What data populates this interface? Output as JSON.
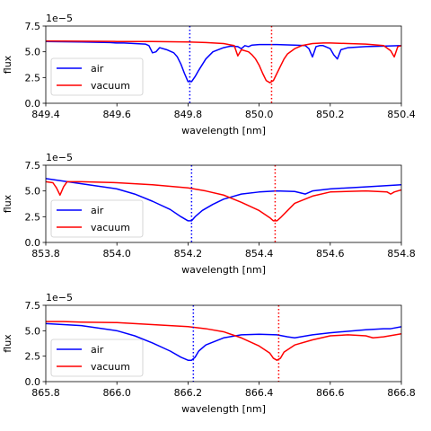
{
  "chart_data": [
    {
      "type": "line",
      "xlabel": "wavelength [nm]",
      "ylabel": "flux",
      "offset_text": "1e−5",
      "xlim": [
        849.4,
        850.4
      ],
      "ylim": [
        0.0,
        7.5
      ],
      "y_scale_factor": "1e-5",
      "xticks": [
        "849.4",
        "849.6",
        "849.8",
        "850.0",
        "850.2",
        "850.4"
      ],
      "yticks": [
        "0.0",
        "2.5",
        "5.0",
        "7.5"
      ],
      "legend": "upper-left",
      "series": [
        {
          "name": "air",
          "color": "#0000ff",
          "x": [
            849.4,
            849.5,
            849.58,
            849.6,
            849.62,
            849.65,
            849.68,
            849.69,
            849.7,
            849.71,
            849.72,
            849.74,
            849.76,
            849.77,
            849.78,
            849.79,
            849.8,
            849.81,
            849.82,
            849.83,
            849.85,
            849.87,
            849.9,
            849.92,
            849.94,
            849.95,
            849.96,
            849.97,
            849.98,
            850.0,
            850.05,
            850.1,
            850.13,
            850.14,
            850.15,
            850.16,
            850.17,
            850.18,
            850.2,
            850.21,
            850.22,
            850.23,
            850.25,
            850.3,
            850.35,
            850.4
          ],
          "y": [
            6.0,
            5.95,
            5.9,
            5.85,
            5.85,
            5.8,
            5.75,
            5.6,
            4.9,
            5.0,
            5.4,
            5.2,
            4.9,
            4.5,
            3.8,
            2.9,
            2.1,
            2.1,
            2.6,
            3.2,
            4.3,
            5.0,
            5.4,
            5.55,
            5.5,
            5.3,
            5.6,
            5.5,
            5.65,
            5.7,
            5.7,
            5.65,
            5.6,
            5.3,
            4.5,
            5.5,
            5.6,
            5.6,
            5.3,
            4.7,
            4.3,
            5.2,
            5.4,
            5.5,
            5.55,
            5.6
          ]
        },
        {
          "name": "vacuum",
          "color": "#ff0000",
          "x": [
            849.4,
            849.6,
            849.7,
            849.8,
            849.85,
            849.9,
            849.93,
            849.94,
            849.95,
            849.97,
            849.98,
            849.99,
            850.0,
            850.01,
            850.02,
            850.03,
            850.04,
            850.05,
            850.06,
            850.07,
            850.08,
            850.1,
            850.12,
            850.15,
            850.18,
            850.2,
            850.25,
            850.3,
            850.35,
            850.37,
            850.38,
            850.39,
            850.4
          ],
          "y": [
            6.05,
            6.0,
            6.0,
            5.95,
            5.9,
            5.8,
            5.6,
            4.6,
            5.2,
            5.0,
            4.7,
            4.3,
            3.7,
            2.9,
            2.2,
            2.0,
            2.2,
            2.9,
            3.6,
            4.3,
            4.8,
            5.3,
            5.6,
            5.8,
            5.85,
            5.85,
            5.8,
            5.75,
            5.6,
            5.1,
            4.5,
            5.5,
            5.6
          ]
        }
      ],
      "vlines": [
        {
          "x": 849.805,
          "color": "#0000ff",
          "style": "dotted"
        },
        {
          "x": 850.035,
          "color": "#ff0000",
          "style": "dotted"
        }
      ]
    },
    {
      "type": "line",
      "xlabel": "wavelength [nm]",
      "ylabel": "flux",
      "offset_text": "1e−5",
      "xlim": [
        853.8,
        854.8
      ],
      "ylim": [
        0.0,
        7.5
      ],
      "y_scale_factor": "1e-5",
      "xticks": [
        "853.8",
        "854.0",
        "854.2",
        "854.4",
        "854.6",
        "854.8"
      ],
      "yticks": [
        "0.0",
        "2.5",
        "5.0",
        "7.5"
      ],
      "legend": "lower-left",
      "series": [
        {
          "name": "air",
          "color": "#0000ff",
          "x": [
            853.8,
            853.9,
            854.0,
            854.05,
            854.1,
            854.15,
            854.18,
            854.2,
            854.21,
            854.22,
            854.24,
            854.27,
            854.3,
            854.35,
            854.4,
            854.45,
            854.5,
            854.53,
            854.55,
            854.6,
            854.7,
            854.8
          ],
          "y": [
            6.2,
            5.7,
            5.2,
            4.7,
            4.0,
            3.2,
            2.5,
            2.1,
            2.1,
            2.5,
            3.1,
            3.7,
            4.2,
            4.7,
            4.9,
            5.0,
            4.95,
            4.7,
            5.0,
            5.2,
            5.4,
            5.6
          ]
        },
        {
          "name": "vacuum",
          "color": "#ff0000",
          "x": [
            853.8,
            853.82,
            853.83,
            853.84,
            853.85,
            853.86,
            853.9,
            854.0,
            854.1,
            854.2,
            854.25,
            854.3,
            854.35,
            854.4,
            854.43,
            854.44,
            854.45,
            854.46,
            854.48,
            854.5,
            854.55,
            854.6,
            854.7,
            854.76,
            854.77,
            854.78,
            854.8
          ],
          "y": [
            5.9,
            5.8,
            5.3,
            4.6,
            5.4,
            5.9,
            5.9,
            5.8,
            5.6,
            5.3,
            5.0,
            4.6,
            3.9,
            3.1,
            2.4,
            2.1,
            2.1,
            2.4,
            3.1,
            3.8,
            4.5,
            4.9,
            5.0,
            4.9,
            4.7,
            4.9,
            5.1
          ]
        }
      ],
      "vlines": [
        {
          "x": 854.21,
          "color": "#0000ff",
          "style": "dotted"
        },
        {
          "x": 854.445,
          "color": "#ff0000",
          "style": "dotted"
        }
      ]
    },
    {
      "type": "line",
      "xlabel": "wavelength [nm]",
      "ylabel": "flux",
      "offset_text": "1e−5",
      "xlim": [
        865.8,
        866.8
      ],
      "ylim": [
        0.0,
        7.5
      ],
      "y_scale_factor": "1e-5",
      "xticks": [
        "865.8",
        "866.0",
        "866.2",
        "866.4",
        "866.6",
        "866.8"
      ],
      "yticks": [
        "0.0",
        "2.5",
        "5.0",
        "7.5"
      ],
      "legend": "lower-left",
      "series": [
        {
          "name": "air",
          "color": "#0000ff",
          "x": [
            865.8,
            865.9,
            866.0,
            866.05,
            866.1,
            866.15,
            866.18,
            866.2,
            866.21,
            866.22,
            866.23,
            866.25,
            866.3,
            866.35,
            866.4,
            866.45,
            866.48,
            866.5,
            866.55,
            866.6,
            866.7,
            866.75,
            866.77,
            866.8
          ],
          "y": [
            5.7,
            5.5,
            5.0,
            4.5,
            3.8,
            3.0,
            2.4,
            2.1,
            2.1,
            2.4,
            3.0,
            3.6,
            4.3,
            4.6,
            4.65,
            4.6,
            4.4,
            4.3,
            4.6,
            4.8,
            5.1,
            5.2,
            5.2,
            5.4
          ]
        },
        {
          "name": "vacuum",
          "color": "#ff0000",
          "x": [
            865.8,
            865.85,
            865.9,
            866.0,
            866.1,
            866.2,
            866.25,
            866.3,
            866.35,
            866.4,
            866.43,
            866.44,
            866.45,
            866.46,
            866.47,
            866.5,
            866.55,
            866.6,
            866.65,
            866.7,
            866.72,
            866.75,
            866.8
          ],
          "y": [
            5.9,
            5.9,
            5.85,
            5.8,
            5.6,
            5.4,
            5.2,
            4.9,
            4.3,
            3.5,
            2.8,
            2.3,
            2.1,
            2.3,
            2.9,
            3.6,
            4.1,
            4.5,
            4.6,
            4.5,
            4.3,
            4.4,
            4.7
          ]
        }
      ],
      "vlines": [
        {
          "x": 866.215,
          "color": "#0000ff",
          "style": "dotted"
        },
        {
          "x": 866.455,
          "color": "#ff0000",
          "style": "dotted"
        }
      ]
    }
  ]
}
